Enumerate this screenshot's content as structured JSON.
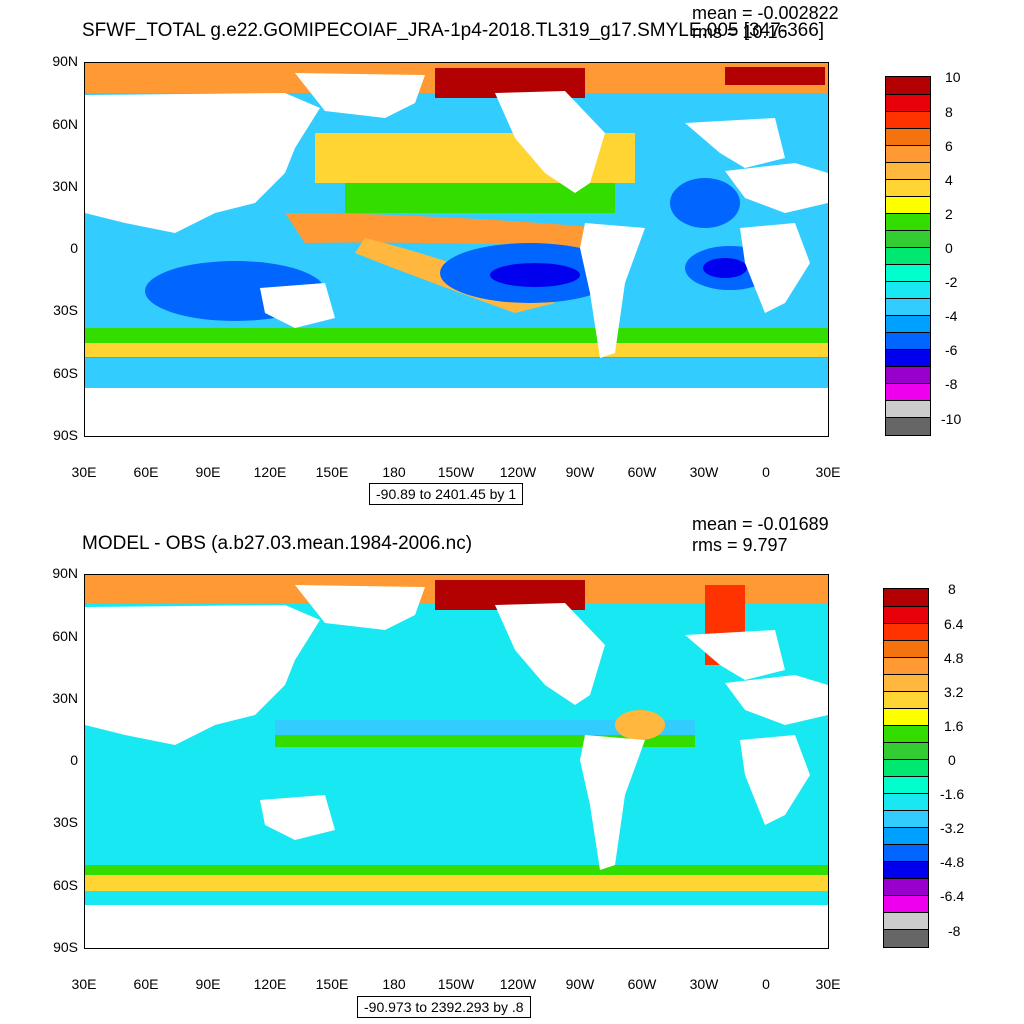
{
  "top": {
    "title": "SFWF_TOTAL g.e22.GOMIPECOIAF_JRA-1p4-2018.TL319_g17.SMYLE.005 [347-366]",
    "mean_text": "mean = -0.002822",
    "rms_text": "rms = 10.16",
    "range_text": "-90.89 to 2401.45 by 1",
    "colorbar_labels": [
      "10",
      "8",
      "6",
      "4",
      "2",
      "0",
      "-2",
      "-4",
      "-6",
      "-8",
      "-10"
    ]
  },
  "bottom": {
    "title": "MODEL - OBS (a.b27.03.mean.1984-2006.nc)",
    "mean_text": "mean = -0.01689",
    "rms_text": "rms = 9.797",
    "range_text": "-90.973 to 2392.293 by .8",
    "colorbar_labels": [
      "8",
      "6.4",
      "4.8",
      "3.2",
      "1.6",
      "0",
      "-1.6",
      "-3.2",
      "-4.8",
      "-6.4",
      "-8"
    ]
  },
  "axes": {
    "lat_labels": [
      "90N",
      "60N",
      "30N",
      "0",
      "30S",
      "60S",
      "90S"
    ],
    "lon_labels": [
      "30E",
      "60E",
      "90E",
      "120E",
      "150E",
      "180",
      "150W",
      "120W",
      "90W",
      "60W",
      "30W",
      "0",
      "30E"
    ]
  },
  "colors": {
    "scale": [
      "#b30000",
      "#e8000b",
      "#ff3300",
      "#f5730f",
      "#ff9933",
      "#ffb83d",
      "#ffd533",
      "#ffff00",
      "#33dd00",
      "#33cc33",
      "#00e86f",
      "#00ffcc",
      "#18e8f2",
      "#33ccff",
      "#00a0ff",
      "#0066ff",
      "#0000ee",
      "#9900cc",
      "#ee00ee",
      "#cccccc",
      "#666666"
    ],
    "land": "#ffffff"
  }
}
